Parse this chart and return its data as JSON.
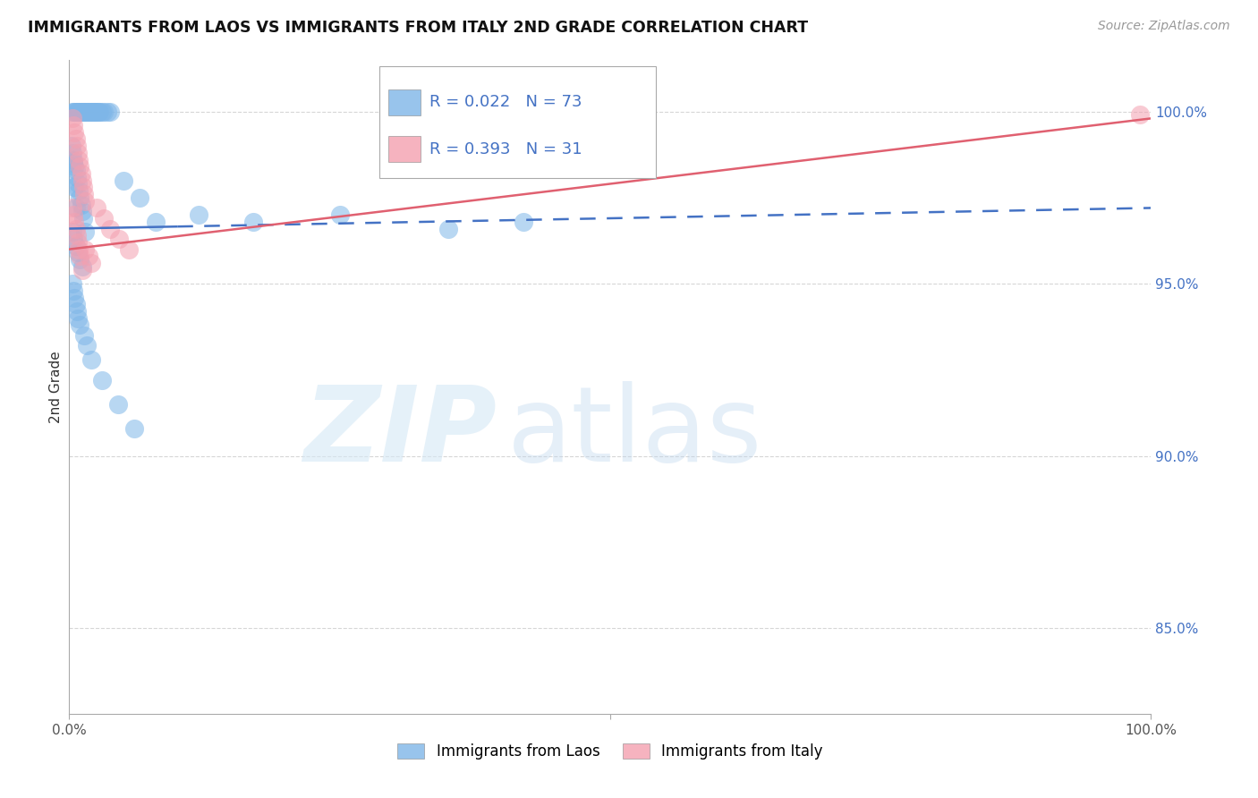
{
  "title": "IMMIGRANTS FROM LAOS VS IMMIGRANTS FROM ITALY 2ND GRADE CORRELATION CHART",
  "source_text": "Source: ZipAtlas.com",
  "ylabel": "2nd Grade",
  "xlim": [
    0.0,
    1.0
  ],
  "ylim": [
    0.825,
    1.015
  ],
  "yticks": [
    0.85,
    0.9,
    0.95,
    1.0
  ],
  "ytick_labels": [
    "85.0%",
    "90.0%",
    "95.0%",
    "100.0%"
  ],
  "blue_color": "#7EB6E8",
  "pink_color": "#F4A0B0",
  "trend_blue_color": "#4472C4",
  "trend_pink_color": "#E06070",
  "legend_R_blue": "R = 0.022",
  "legend_N_blue": "N = 73",
  "legend_R_pink": "R = 0.393",
  "legend_N_pink": "N = 31",
  "legend_blue_label": "Immigrants from Laos",
  "legend_pink_label": "Immigrants from Italy",
  "blue_trend_x0": 0.0,
  "blue_trend_x1": 1.0,
  "blue_trend_y0": 0.966,
  "blue_trend_y1": 0.972,
  "blue_trend_solid_end": 0.1,
  "pink_trend_x0": 0.0,
  "pink_trend_x1": 1.0,
  "pink_trend_y0": 0.96,
  "pink_trend_y1": 0.998,
  "blue_x": [
    0.003,
    0.004,
    0.005,
    0.006,
    0.007,
    0.008,
    0.009,
    0.01,
    0.011,
    0.012,
    0.013,
    0.014,
    0.015,
    0.016,
    0.017,
    0.018,
    0.019,
    0.02,
    0.021,
    0.022,
    0.023,
    0.024,
    0.025,
    0.026,
    0.027,
    0.028,
    0.03,
    0.032,
    0.035,
    0.038,
    0.002,
    0.003,
    0.004,
    0.005,
    0.006,
    0.007,
    0.008,
    0.009,
    0.01,
    0.011,
    0.012,
    0.013,
    0.015,
    0.004,
    0.005,
    0.006,
    0.003,
    0.004,
    0.006,
    0.008,
    0.01,
    0.012,
    0.05,
    0.065,
    0.08,
    0.12,
    0.17,
    0.25,
    0.35,
    0.42,
    0.003,
    0.004,
    0.005,
    0.006,
    0.007,
    0.008,
    0.01,
    0.014,
    0.016,
    0.02,
    0.03,
    0.045,
    0.06
  ],
  "blue_y": [
    1.0,
    1.0,
    1.0,
    1.0,
    1.0,
    1.0,
    1.0,
    1.0,
    1.0,
    1.0,
    1.0,
    1.0,
    1.0,
    1.0,
    1.0,
    1.0,
    1.0,
    1.0,
    1.0,
    1.0,
    1.0,
    1.0,
    1.0,
    1.0,
    1.0,
    1.0,
    1.0,
    1.0,
    1.0,
    1.0,
    0.99,
    0.988,
    0.986,
    0.984,
    0.983,
    0.981,
    0.979,
    0.977,
    0.975,
    0.973,
    0.971,
    0.969,
    0.965,
    0.985,
    0.978,
    0.972,
    0.965,
    0.963,
    0.961,
    0.959,
    0.957,
    0.955,
    0.98,
    0.975,
    0.968,
    0.97,
    0.968,
    0.97,
    0.966,
    0.968,
    0.95,
    0.948,
    0.946,
    0.944,
    0.942,
    0.94,
    0.938,
    0.935,
    0.932,
    0.928,
    0.922,
    0.915,
    0.908
  ],
  "pink_x": [
    0.003,
    0.004,
    0.005,
    0.006,
    0.007,
    0.008,
    0.009,
    0.01,
    0.011,
    0.012,
    0.013,
    0.014,
    0.015,
    0.003,
    0.004,
    0.005,
    0.006,
    0.007,
    0.008,
    0.009,
    0.01,
    0.012,
    0.015,
    0.018,
    0.02,
    0.025,
    0.032,
    0.038,
    0.046,
    0.055,
    0.99
  ],
  "pink_y": [
    0.998,
    0.996,
    0.994,
    0.992,
    0.99,
    0.988,
    0.986,
    0.984,
    0.982,
    0.98,
    0.978,
    0.976,
    0.974,
    0.972,
    0.97,
    0.968,
    0.966,
    0.964,
    0.962,
    0.96,
    0.958,
    0.954,
    0.96,
    0.958,
    0.956,
    0.972,
    0.969,
    0.966,
    0.963,
    0.96,
    0.999
  ],
  "grid_color": "#CCCCCC",
  "background_color": "#FFFFFF"
}
